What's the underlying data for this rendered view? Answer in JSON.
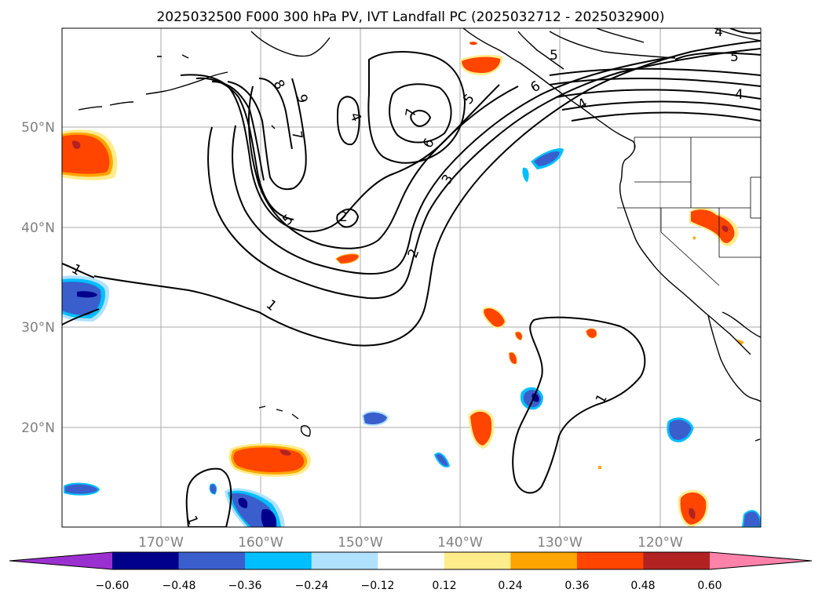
{
  "title": "2025032500 F000 300 hPa PV, IVT Landfall PC (2025032712 - 2025032900)",
  "map": {
    "lon_labels": [
      "170°W",
      "160°W",
      "150°W",
      "140°W",
      "130°W",
      "120°W"
    ],
    "lat_labels": [
      "50°N",
      "40°N",
      "30°N",
      "20°N"
    ],
    "gridline_color": "#aaaaaa",
    "tick_label_color": "#808080",
    "contour_labels": [
      "8",
      "9",
      "7",
      "6",
      "5",
      "4",
      "7",
      "6",
      "5",
      "4",
      "3",
      "2",
      "2",
      "5",
      "1",
      "1",
      "1",
      "1",
      "5",
      "4",
      "4"
    ]
  },
  "colorbar": {
    "ticks": [
      "−0.60",
      "−0.48",
      "−0.36",
      "−0.24",
      "−0.12",
      "0.12",
      "0.24",
      "0.36",
      "0.48",
      "0.60"
    ],
    "colors": [
      "#9b30d0",
      "#00008b",
      "#3a5fcd",
      "#00bfff",
      "#b0e2ff",
      "#ffffff",
      "#ffec8b",
      "#ffa500",
      "#ff4500",
      "#b22222",
      "#ff82ab"
    ]
  }
}
